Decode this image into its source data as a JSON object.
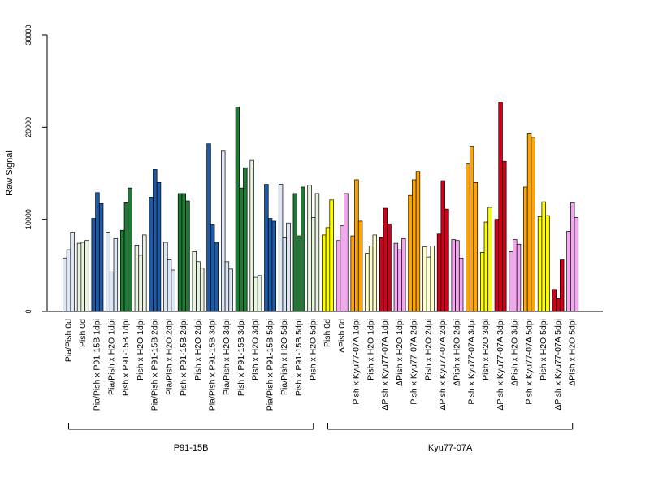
{
  "chart_data": {
    "type": "bar",
    "title": "",
    "xlabel": "",
    "ylabel": "Raw Signal",
    "ylim": [
      0,
      30000
    ],
    "yticks": [
      0,
      10000,
      20000,
      30000
    ],
    "grid": false,
    "legend": "none",
    "colors": {
      "light_blue": "#dce6f5",
      "dark_blue": "#1f5aa6",
      "light_green": "#e8f4e0",
      "dark_green": "#1f7a33",
      "yellow": "#ffff00",
      "light_yellow": "#ffffcc",
      "orange": "#ffa500",
      "red": "#d0021b",
      "pink": "#f5a6f0"
    },
    "categories": [
      "Pia/Pish 0d",
      "Pish 0d",
      "Pia/Pish x P91-15B 1dpi",
      "Pia/Pish x H2O 1dpi",
      "Pish x P91-15B 1dpi",
      "Pish x H2O 1dpi",
      "Pia/Pish x P91-15B 2dpi",
      "Pia/Pish x H2O 2dpi",
      "Pish x P91-15B 2dpi",
      "Pish x H2O 2dpi",
      "Pia/Pish x P91-15B 3dpi",
      "Pia/Pish x H2O 3dpi",
      "Pish x P91-15B 3dpi",
      "Pish x H2O 3dpi",
      "Pia/Pish x P91-15B 5dpi",
      "Pia/Pish x H2O 5dpi",
      "Pish x P91-15B 5dpi",
      "Pish x H2O 5dpi",
      "Pish 0d",
      "ΔPish 0d",
      "Pish x Kyu77-07A 1dpi",
      "Pish x H2O 1dpi",
      "ΔPish x Kyu77-07A 1dpi",
      "ΔPish x H2O 1dpi",
      "Pish x Kyu77-07A 2dpi",
      "Pish x H2O 2dpi",
      "ΔPish x Kyu77-07A 2dpi",
      "ΔPish x H2O 2dpi",
      "Pish x Kyu77-07A 3dpi",
      "Pish x H2O 3dpi",
      "ΔPish x Kyu77-07A 3dpi",
      "ΔPish x H2O 3dpi",
      "Pish x Kyu77-07A 5dpi",
      "Pish x H2O 5dpi",
      "ΔPish x Kyu77-07A 5dpi",
      "ΔPish x H2O 5dpi"
    ],
    "groups": [
      {
        "label": "P91-15B",
        "first": 0,
        "last": 17
      },
      {
        "label": "Kyu77-07A",
        "first": 18,
        "last": 35
      }
    ],
    "bars": [
      {
        "values": [
          5800,
          6700,
          8600
        ],
        "color": "light_blue"
      },
      {
        "values": [
          7400,
          7500,
          7700
        ],
        "color": "light_green"
      },
      {
        "values": [
          10100,
          12900,
          11700
        ],
        "color": "dark_blue"
      },
      {
        "values": [
          8600,
          4300,
          7900
        ],
        "color": "light_blue"
      },
      {
        "values": [
          8800,
          11800,
          13400
        ],
        "color": "dark_green"
      },
      {
        "values": [
          7200,
          6100,
          8300
        ],
        "color": "light_green"
      },
      {
        "values": [
          12400,
          15400,
          14000
        ],
        "color": "dark_blue"
      },
      {
        "values": [
          7500,
          5600,
          4500
        ],
        "color": "light_blue"
      },
      {
        "values": [
          12800,
          12800,
          12000
        ],
        "color": "dark_green"
      },
      {
        "values": [
          6500,
          5400,
          4700
        ],
        "color": "light_green"
      },
      {
        "values": [
          18200,
          9400,
          7500
        ],
        "color": "dark_blue"
      },
      {
        "values": [
          17400,
          5400,
          4600
        ],
        "color": "light_blue"
      },
      {
        "values": [
          22200,
          13400,
          15600
        ],
        "color": "dark_green"
      },
      {
        "values": [
          16400,
          3700,
          3900
        ],
        "color": "light_green"
      },
      {
        "values": [
          13800,
          10100,
          9800
        ],
        "color": "dark_blue"
      },
      {
        "values": [
          13800,
          8000,
          9600
        ],
        "color": "light_blue"
      },
      {
        "values": [
          12800,
          8200,
          13500
        ],
        "color": "dark_green"
      },
      {
        "values": [
          13700,
          10200,
          12800
        ],
        "color": "light_green"
      },
      {
        "values": [
          8300,
          9100,
          12100
        ],
        "color": "yellow"
      },
      {
        "values": [
          7700,
          9300,
          12800
        ],
        "color": "pink"
      },
      {
        "values": [
          8200,
          14300,
          9800
        ],
        "color": "orange"
      },
      {
        "values": [
          6300,
          7100,
          8300
        ],
        "color": "light_yellow"
      },
      {
        "values": [
          8000,
          11200,
          9500
        ],
        "color": "red"
      },
      {
        "values": [
          7400,
          6700,
          7900
        ],
        "color": "pink"
      },
      {
        "values": [
          12600,
          14300,
          15200
        ],
        "color": "orange"
      },
      {
        "values": [
          7000,
          5900,
          7100
        ],
        "color": "light_yellow"
      },
      {
        "values": [
          8400,
          14200,
          11100
        ],
        "color": "red"
      },
      {
        "values": [
          7800,
          7700,
          5800
        ],
        "color": "pink"
      },
      {
        "values": [
          16000,
          17900,
          14000
        ],
        "color": "orange"
      },
      {
        "values": [
          6400,
          9700,
          11300
        ],
        "color": "yellow"
      },
      {
        "values": [
          10000,
          22700,
          16300
        ],
        "color": "red"
      },
      {
        "values": [
          6500,
          7800,
          7300
        ],
        "color": "pink"
      },
      {
        "values": [
          13500,
          19300,
          18900
        ],
        "color": "orange"
      },
      {
        "values": [
          10300,
          11900,
          10400
        ],
        "color": "yellow"
      },
      {
        "values": [
          2400,
          1400,
          5600
        ],
        "color": "red"
      },
      {
        "values": [
          8700,
          11800,
          10200
        ],
        "color": "pink"
      }
    ]
  }
}
